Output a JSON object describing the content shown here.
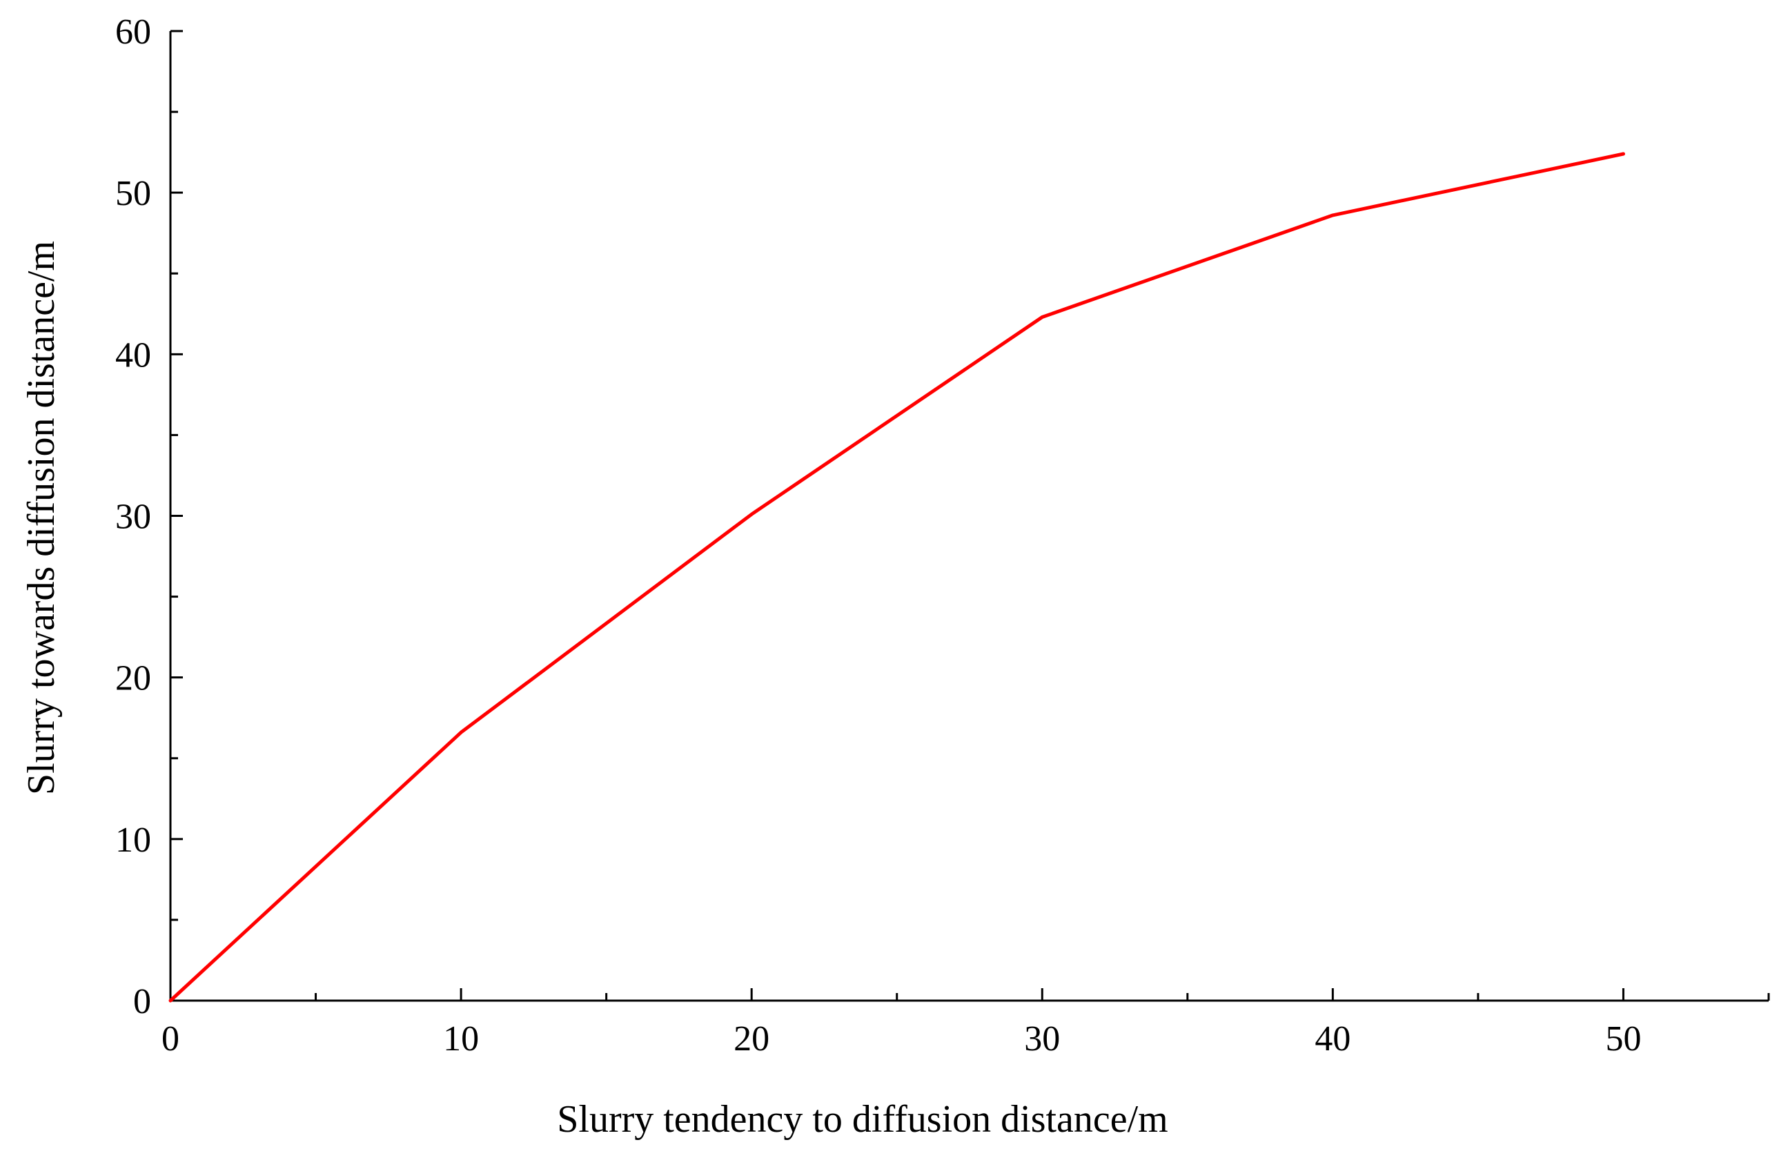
{
  "chart_data": {
    "type": "line",
    "title": "",
    "xlabel": "Slurry tendency to diffusion distance/m",
    "ylabel": "Slurry towards diffusion distance/m",
    "xlim": [
      0,
      55
    ],
    "ylim": [
      0,
      60
    ],
    "x_ticks": [
      0,
      10,
      20,
      30,
      40,
      50
    ],
    "x_tick_labels": [
      "0",
      "10",
      "20",
      "30",
      "40",
      "50"
    ],
    "x_minor_ticks": [
      5,
      15,
      25,
      35,
      45,
      55
    ],
    "y_ticks": [
      0,
      10,
      20,
      30,
      40,
      50,
      60
    ],
    "y_tick_labels": [
      "0",
      "10",
      "20",
      "30",
      "40",
      "50",
      "60"
    ],
    "y_minor_ticks": [
      5,
      15,
      25,
      35,
      45,
      55
    ],
    "grid": false,
    "legend": "none",
    "series": [
      {
        "color": "#ff0000",
        "x": [
          0,
          10,
          20,
          30,
          40,
          50
        ],
        "y": [
          0,
          16.6,
          30.1,
          42.3,
          48.6,
          52.4
        ]
      }
    ]
  }
}
